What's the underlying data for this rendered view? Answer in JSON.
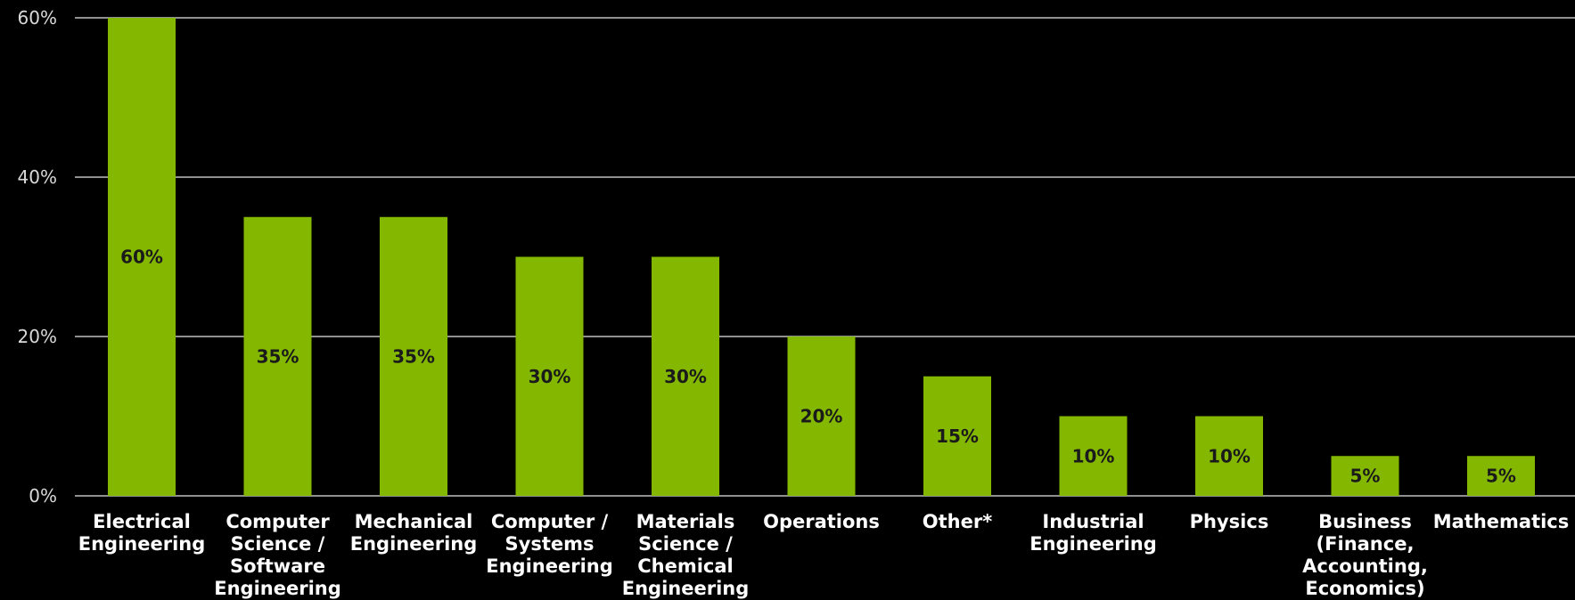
{
  "chart_data": {
    "type": "bar",
    "title": "",
    "xlabel": "",
    "ylabel": "",
    "ylim": [
      0,
      60
    ],
    "yticks": [
      0,
      20,
      40,
      60
    ],
    "ytick_labels": [
      "0%",
      "20%",
      "40%",
      "60%"
    ],
    "grid": true,
    "categories": [
      [
        "Electrical",
        "Engineering"
      ],
      [
        "Computer",
        "Science /",
        "Software",
        "Engineering"
      ],
      [
        "Mechanical",
        "Engineering"
      ],
      [
        "Computer /",
        "Systems",
        "Engineering"
      ],
      [
        "Materials",
        "Science /",
        "Chemical",
        "Engineering"
      ],
      [
        "Operations"
      ],
      [
        "Other*"
      ],
      [
        "Industrial",
        "Engineering"
      ],
      [
        "Physics"
      ],
      [
        "Business",
        "(Finance,",
        "Accounting,",
        "Economics)"
      ],
      [
        "Mathematics"
      ]
    ],
    "values": [
      60,
      35,
      35,
      30,
      30,
      20,
      15,
      10,
      10,
      5,
      5
    ],
    "data_labels": [
      "60%",
      "35%",
      "35%",
      "30%",
      "30%",
      "20%",
      "15%",
      "10%",
      "10%",
      "5%",
      "5%"
    ]
  },
  "colors": {
    "background": "#000000",
    "bar": "#84b800",
    "grid": "#bfbfbf",
    "tick_text": "#d9d9d9",
    "category_text": "#ffffff",
    "data_label_text": "#1a1a1a"
  }
}
